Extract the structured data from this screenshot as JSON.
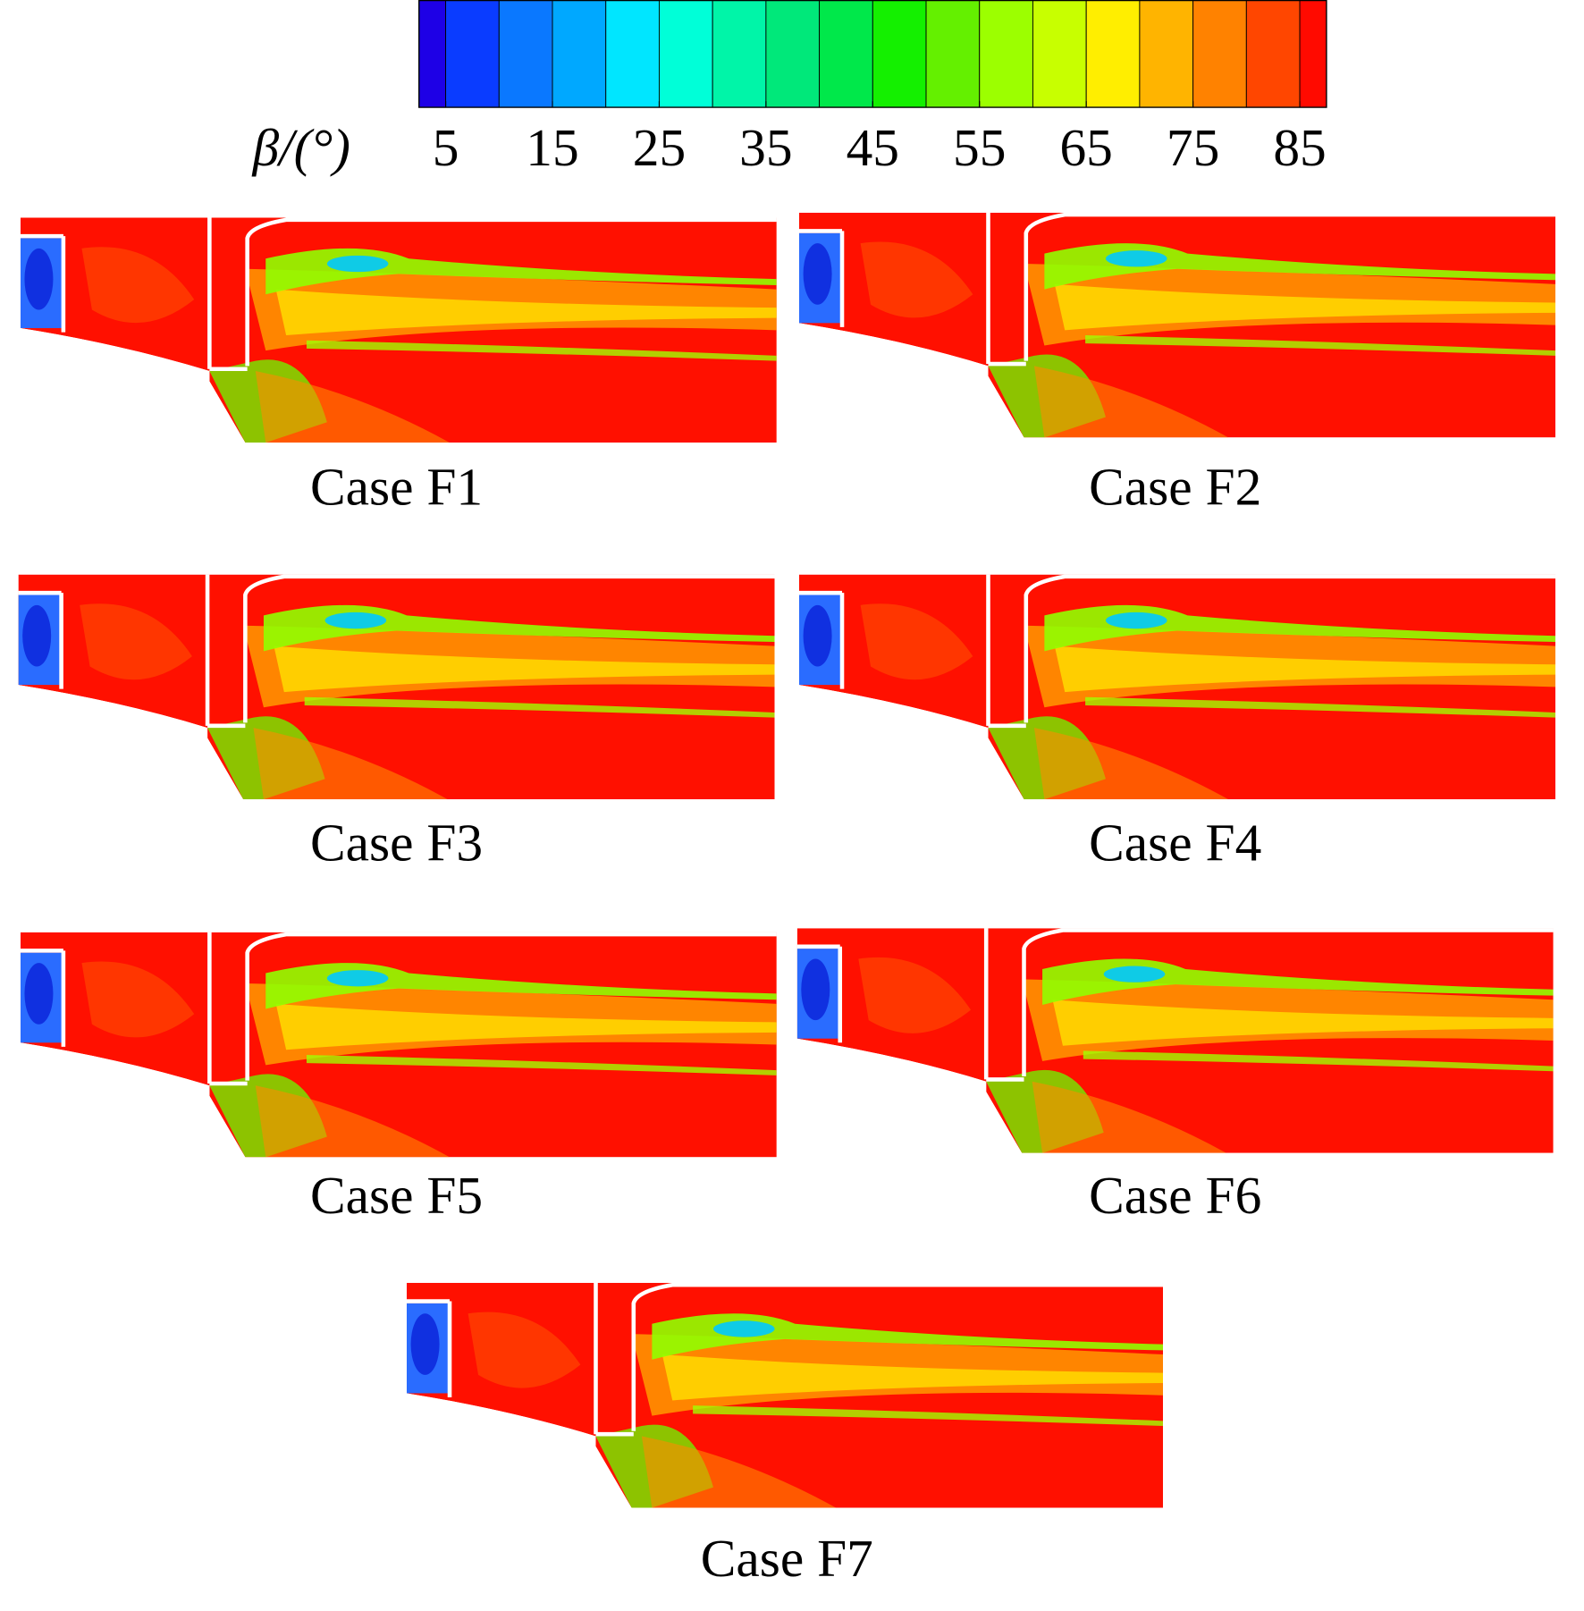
{
  "chart_data": {
    "type": "contour",
    "colorbar": {
      "label": "β/(°)",
      "lim": [
        2.5,
        87.5
      ],
      "levels": [
        5,
        10,
        15,
        20,
        25,
        30,
        35,
        40,
        45,
        50,
        55,
        60,
        65,
        70,
        75,
        80,
        85
      ],
      "colors": [
        "#1e00e6",
        "#0a3cff",
        "#0a78ff",
        "#00a8ff",
        "#00e6ff",
        "#00ffd8",
        "#00f5a8",
        "#00e87a",
        "#00e84a",
        "#14f000",
        "#64f000",
        "#9cff00",
        "#c8ff00",
        "#ffee00",
        "#ffb400",
        "#ff8200",
        "#ff4600",
        "#ff0a00"
      ],
      "ticks": [
        5,
        15,
        25,
        35,
        45,
        55,
        65,
        75,
        85
      ]
    },
    "panels": [
      {
        "label": "Case F1"
      },
      {
        "label": "Case F2"
      },
      {
        "label": "Case F3"
      },
      {
        "label": "Case F4"
      },
      {
        "label": "Case F5"
      },
      {
        "label": "Case F6"
      },
      {
        "label": "Case F7"
      }
    ]
  }
}
